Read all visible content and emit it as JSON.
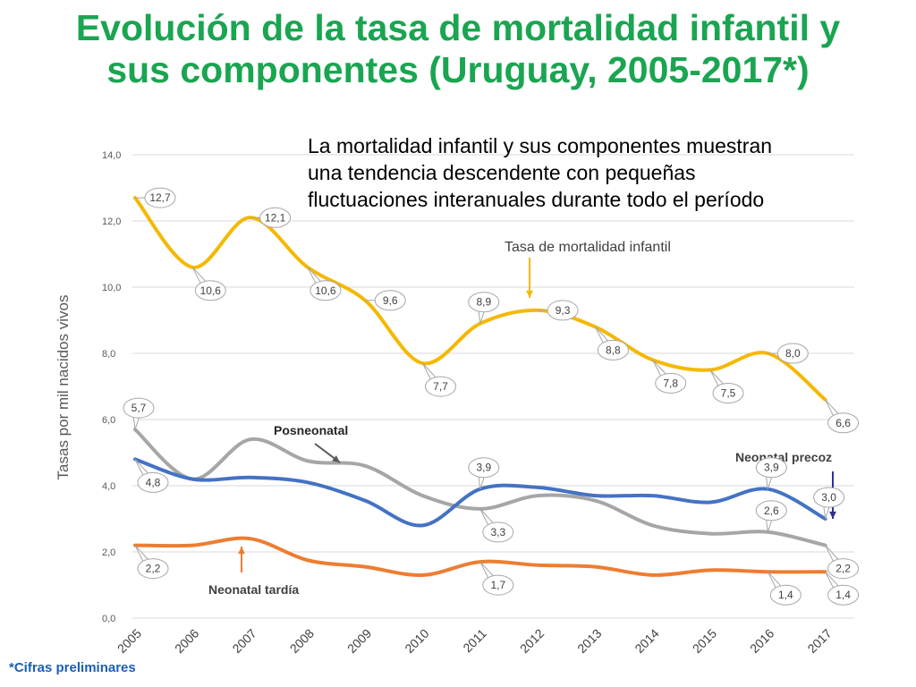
{
  "title_line1": "Evolución de la tasa de mortalidad infantil y",
  "title_line2": "sus componentes (Uruguay, 2005-2017*)",
  "subtitle_line1": "La mortalidad infantil y sus componentes muestran",
  "subtitle_line2": "una tendencia descendente con pequeñas",
  "subtitle_line3": "fluctuaciones interanuales durante todo el período",
  "footnote": "*Cifras preliminares",
  "colors": {
    "title": "#1aa551",
    "infantil": "#f5b800",
    "posneonatal": "#a6a6a6",
    "precoz": "#4472c4",
    "tardia": "#ed7d31",
    "arrow_precoz": "#2e3192"
  },
  "chart_data": {
    "type": "line",
    "title": "Evolución de la tasa de mortalidad infantil y sus componentes (Uruguay, 2005-2017*)",
    "xlabel": "",
    "ylabel": "Tasas por mil nacidos vivos",
    "ylim": [
      0,
      14
    ],
    "yticks": [
      "0,0",
      "2,0",
      "4,0",
      "6,0",
      "8,0",
      "10,0",
      "12,0",
      "14,0"
    ],
    "categories": [
      "2005",
      "2006",
      "2007",
      "2008",
      "2009",
      "2010",
      "2011",
      "2012",
      "2013",
      "2014",
      "2015",
      "2016",
      "2017"
    ],
    "grid": true,
    "series": [
      {
        "name": "Tasa de mortalidad infantil",
        "key": "infantil",
        "values": [
          12.7,
          10.6,
          12.1,
          10.6,
          9.6,
          7.7,
          8.9,
          9.3,
          8.8,
          7.8,
          7.5,
          8.0,
          6.6
        ],
        "labels": [
          "12,7",
          "10,6",
          "12,1",
          "10,6",
          "9,6",
          "7,7",
          "8,9",
          "9,3",
          "8,8",
          "7,8",
          "7,5",
          "8,0",
          "6,6"
        ]
      },
      {
        "name": "Posneonatal",
        "key": "posneonatal",
        "values": [
          5.7,
          4.2,
          5.4,
          4.75,
          4.6,
          3.7,
          3.3,
          3.7,
          3.55,
          2.8,
          2.55,
          2.6,
          2.2
        ],
        "labels": [
          "5,7",
          "",
          "",
          "",
          "",
          "",
          "3,3",
          "",
          "",
          "",
          "",
          "2,6",
          "2,2"
        ]
      },
      {
        "name": "Neonatal precoz",
        "key": "precoz",
        "values": [
          4.8,
          4.2,
          4.25,
          4.1,
          3.55,
          2.8,
          3.9,
          3.95,
          3.7,
          3.7,
          3.5,
          3.9,
          3.0
        ],
        "labels": [
          "4,8",
          "",
          "",
          "",
          "",
          "",
          "3,9",
          "",
          "",
          "",
          "",
          "3,9",
          "3,0"
        ]
      },
      {
        "name": "Neonatal tardía",
        "key": "tardia",
        "values": [
          2.2,
          2.2,
          2.4,
          1.75,
          1.55,
          1.3,
          1.7,
          1.6,
          1.55,
          1.3,
          1.45,
          1.4,
          1.4
        ],
        "labels": [
          "2,2",
          "",
          "",
          "",
          "",
          "",
          "1,7",
          "",
          "",
          "",
          "",
          "1,4",
          "1,4"
        ]
      }
    ],
    "annotations": {
      "infantil": "Tasa de mortalidad infantil",
      "posneonatal": "Posneonatal",
      "precoz": "Neonatal precoz",
      "tardia": "Neonatal tardía"
    }
  }
}
